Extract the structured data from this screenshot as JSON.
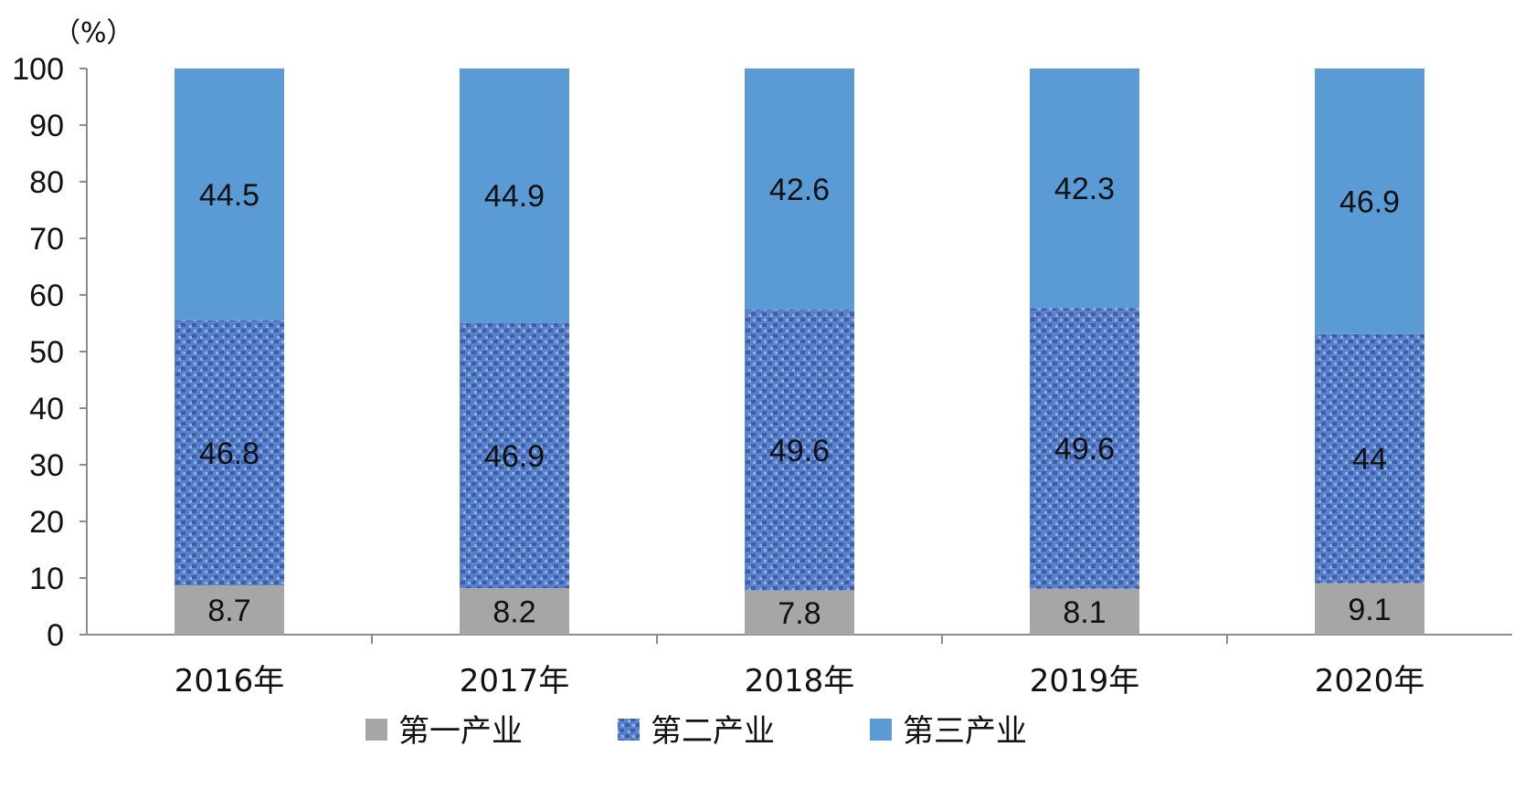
{
  "chart_data": {
    "type": "bar",
    "stacked": true,
    "unit_label": "（%）",
    "categories": [
      "2016年",
      "2017年",
      "2018年",
      "2019年",
      "2020年"
    ],
    "series": [
      {
        "name": "第一产业",
        "values": [
          8.7,
          8.2,
          7.8,
          8.1,
          9.1
        ],
        "color": "#a6a6a6"
      },
      {
        "name": "第二产业",
        "values": [
          46.8,
          46.9,
          49.6,
          49.6,
          44
        ],
        "color": "#4a72c4"
      },
      {
        "name": "第三产业",
        "values": [
          44.5,
          44.9,
          42.6,
          42.3,
          46.9
        ],
        "color": "#5b9bd5"
      }
    ],
    "ylim": [
      0,
      100
    ],
    "yticks": [
      "0",
      "10",
      "20",
      "30",
      "40",
      "50",
      "60",
      "70",
      "80",
      "90",
      "100"
    ],
    "grid": false,
    "legend_position": "bottom"
  }
}
